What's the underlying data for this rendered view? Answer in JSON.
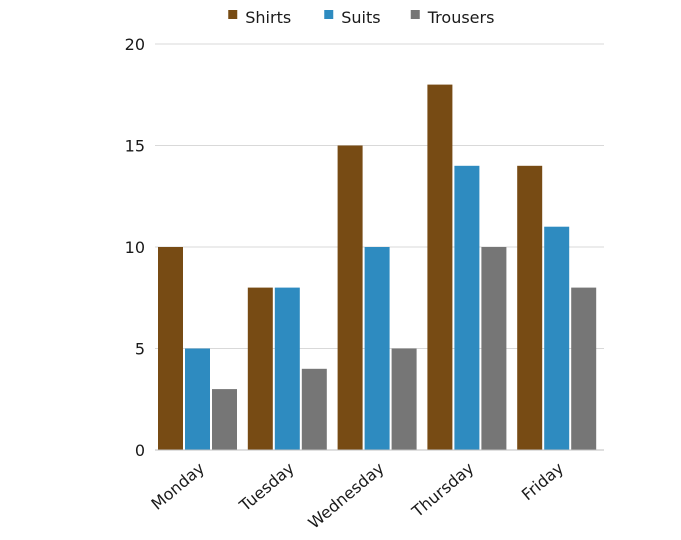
{
  "chart_data": {
    "type": "bar",
    "title": "",
    "xlabel": "",
    "ylabel": "",
    "categories": [
      "Monday",
      "Tuesday",
      "Wednesday",
      "Thursday",
      "Friday"
    ],
    "series": [
      {
        "name": "Shirts",
        "color": "#774b14",
        "values": [
          10,
          8,
          15,
          18,
          14
        ]
      },
      {
        "name": "Suits",
        "color": "#2e8bc0",
        "values": [
          5,
          8,
          10,
          14,
          11
        ]
      },
      {
        "name": "Trousers",
        "color": "#767676",
        "values": [
          3,
          4,
          5,
          10,
          8
        ]
      }
    ],
    "ylim": [
      0,
      20
    ],
    "yticks": [
      0,
      5,
      10,
      15,
      20
    ],
    "grid": true,
    "legend_position": "top-center",
    "gridline_color": "#d9d9d9",
    "axis_color": "#bfbfbf"
  }
}
